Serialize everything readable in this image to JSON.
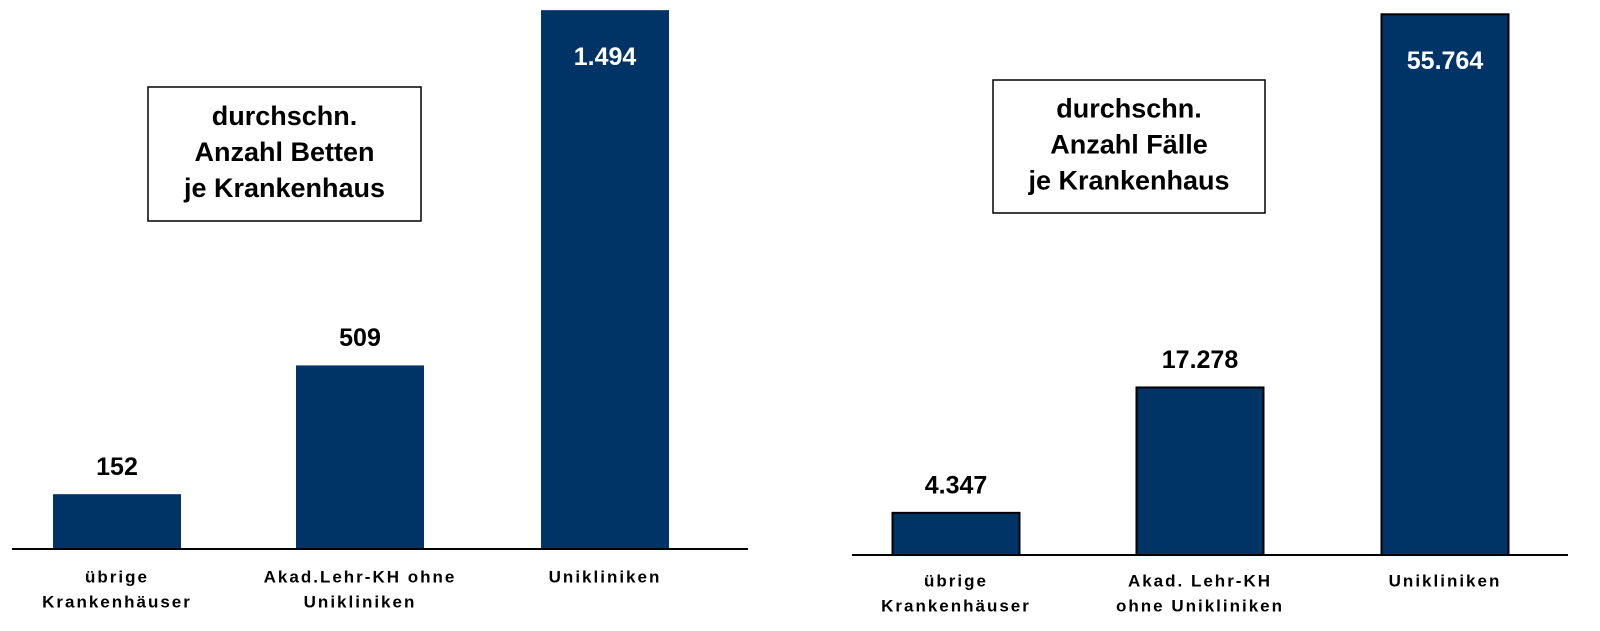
{
  "chart_data": [
    {
      "type": "bar",
      "title": [
        "durchschn.",
        "Anzahl Betten",
        "je Krankenhaus"
      ],
      "categories": [
        [
          "übrige",
          "Krankenhäuser"
        ],
        [
          "Akad.Lehr-KH ohne",
          "Unikliniken"
        ],
        [
          "Unikliniken"
        ]
      ],
      "values": [
        152,
        509,
        1494
      ],
      "value_labels": [
        "152",
        "509",
        "1.494"
      ],
      "color": "#003366",
      "ylim": [
        0,
        1500
      ]
    },
    {
      "type": "bar",
      "title": [
        "durchschn.",
        "Anzahl Fälle",
        "je Krankenhaus"
      ],
      "categories": [
        [
          "übrige",
          "Krankenhäuser"
        ],
        [
          "Akad. Lehr-KH",
          "ohne Unikliniken"
        ],
        [
          "Unikliniken"
        ]
      ],
      "values": [
        4347,
        17278,
        55764
      ],
      "value_labels": [
        "4.347",
        "17.278",
        "55.764"
      ],
      "color": "#003366",
      "ylim": [
        0,
        56000
      ]
    }
  ]
}
